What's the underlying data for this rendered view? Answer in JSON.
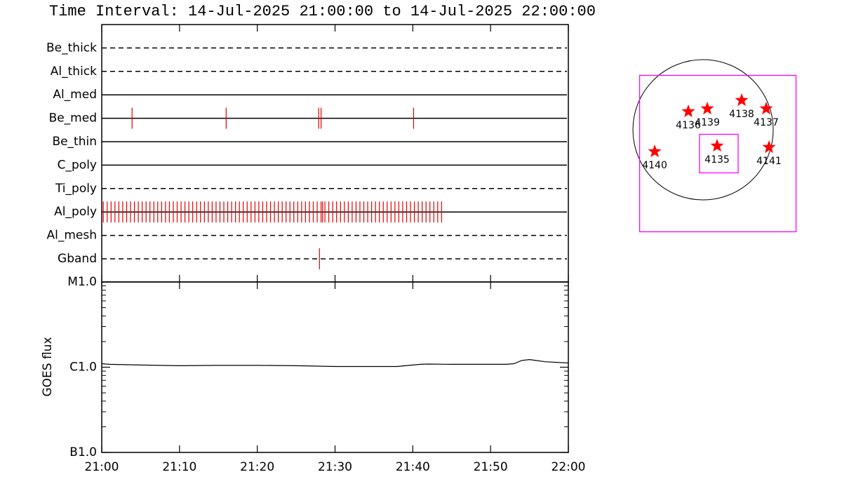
{
  "chart_data": [
    {
      "type": "timeline",
      "title": "Time Interval: 14-Jul-2025 21:00:00 to 14-Jul-2025 22:00:00",
      "event_color": "#e00000",
      "xlim": [
        0,
        60
      ],
      "series": [
        {
          "name": "Be_thick",
          "style": "dashed",
          "events": []
        },
        {
          "name": "Al_thick",
          "style": "dashed",
          "events": []
        },
        {
          "name": "Al_med",
          "style": "solid",
          "events": []
        },
        {
          "name": "Be_med",
          "style": "solid",
          "events": [
            3.9,
            16.0,
            27.9,
            28.2,
            40.1
          ]
        },
        {
          "name": "Be_thin",
          "style": "solid",
          "events": []
        },
        {
          "name": "C_poly",
          "style": "solid",
          "events": []
        },
        {
          "name": "Ti_poly",
          "style": "dashed",
          "events": []
        },
        {
          "name": "Al_poly",
          "style": "solid",
          "events": [
            0.2,
            0.7,
            1.2,
            1.7,
            2.2,
            2.7,
            3.2,
            3.7,
            4.2,
            4.7,
            5.2,
            5.7,
            6.2,
            6.7,
            7.2,
            7.7,
            8.2,
            8.7,
            9.2,
            9.7,
            10.2,
            10.7,
            11.2,
            11.7,
            12.2,
            12.7,
            13.2,
            13.7,
            14.2,
            14.7,
            15.2,
            15.7,
            16.2,
            16.7,
            17.2,
            17.7,
            18.2,
            18.7,
            19.2,
            19.7,
            20.2,
            20.7,
            21.2,
            21.7,
            22.2,
            22.7,
            23.2,
            23.7,
            24.2,
            24.7,
            25.2,
            25.7,
            26.2,
            26.7,
            27.2,
            27.7,
            28.2,
            28.4,
            28.7,
            29.2,
            29.7,
            30.2,
            30.7,
            31.2,
            31.7,
            32.2,
            32.7,
            33.2,
            33.7,
            34.2,
            34.7,
            35.2,
            35.7,
            36.2,
            36.7,
            37.2,
            37.7,
            38.2,
            38.7,
            39.2,
            39.7,
            40.2,
            40.7,
            41.2,
            41.7,
            42.2,
            42.7,
            43.2,
            43.7
          ]
        },
        {
          "name": "Al_mesh",
          "style": "dashed",
          "events": []
        },
        {
          "name": "Gband",
          "style": "dashed",
          "events": [
            28.0
          ]
        }
      ]
    },
    {
      "type": "line",
      "ylabel": "GOES flux",
      "log_y": true,
      "color": "#000000",
      "xlim": [
        0,
        60
      ],
      "xticks": [
        {
          "value": 0,
          "label": "21:00"
        },
        {
          "value": 10,
          "label": "21:10"
        },
        {
          "value": 20,
          "label": "21:20"
        },
        {
          "value": 30,
          "label": "21:30"
        },
        {
          "value": 40,
          "label": "21:40"
        },
        {
          "value": 50,
          "label": "21:50"
        },
        {
          "value": 60,
          "label": "22:00"
        }
      ],
      "ylim": [
        1e-07,
        1e-05
      ],
      "yticks": [
        {
          "value": 1e-07,
          "label": "B1.0"
        },
        {
          "value": 1e-06,
          "label": "C1.0"
        },
        {
          "value": 1e-05,
          "label": "M1.0"
        }
      ],
      "x": [
        0,
        1,
        5,
        10,
        15,
        20,
        25,
        30,
        35,
        38,
        40,
        41,
        42,
        45,
        50,
        52,
        53,
        54,
        55,
        57,
        60
      ],
      "values": [
        1.1e-06,
        1.08e-06,
        1.06e-06,
        1.04e-06,
        1.05e-06,
        1.05e-06,
        1.04e-06,
        1.02e-06,
        1.02e-06,
        1.02e-06,
        1.06e-06,
        1.08e-06,
        1.09e-06,
        1.08e-06,
        1.08e-06,
        1.08e-06,
        1.1e-06,
        1.2e-06,
        1.23e-06,
        1.16e-06,
        1.12e-06
      ]
    },
    {
      "type": "map",
      "solar_radius": 960,
      "star_color": "#ff0000",
      "box_color": "#ff00ff",
      "boxes": [
        {
          "xc": 202,
          "yc": -326,
          "size": 2140
        },
        {
          "xc": 216,
          "yc": -326,
          "size": 528
        }
      ],
      "points": [
        {
          "label": "4136",
          "x": -202,
          "y": 250
        },
        {
          "label": "4139",
          "x": 58,
          "y": 288
        },
        {
          "label": "4138",
          "x": 528,
          "y": 403
        },
        {
          "label": "4137",
          "x": 864,
          "y": 288
        },
        {
          "label": "4135",
          "x": 192,
          "y": -221
        },
        {
          "label": "4141",
          "x": 902,
          "y": -240
        },
        {
          "label": "4140",
          "x": -662,
          "y": -298
        }
      ]
    }
  ]
}
